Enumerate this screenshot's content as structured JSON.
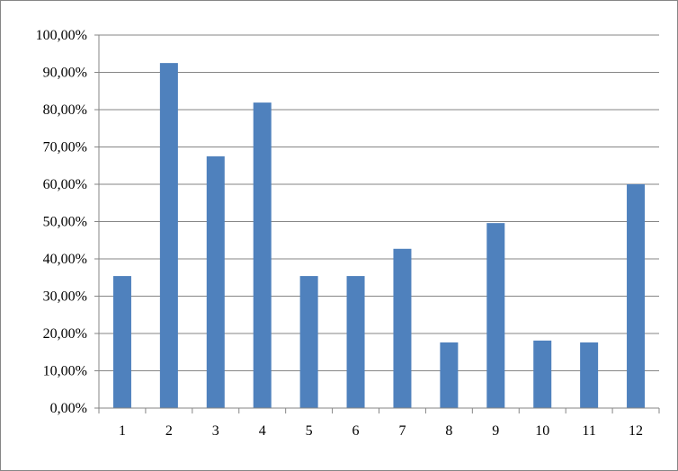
{
  "chart_data": {
    "type": "bar",
    "title": "",
    "xlabel": "",
    "ylabel": "",
    "categories": [
      "1",
      "2",
      "3",
      "4",
      "5",
      "6",
      "7",
      "8",
      "9",
      "10",
      "11",
      "12"
    ],
    "values": [
      35.4,
      92.5,
      67.5,
      81.9,
      35.4,
      35.4,
      42.7,
      17.6,
      49.6,
      18.1,
      17.6,
      60.0
    ],
    "ylim": [
      0,
      100
    ],
    "yticks": [
      "0,00%",
      "10,00%",
      "20,00%",
      "30,00%",
      "40,00%",
      "50,00%",
      "60,00%",
      "70,00%",
      "80,00%",
      "90,00%",
      "100,00%"
    ],
    "grid": true,
    "legend": "none",
    "bar_color": "#4F81BD",
    "grid_color": "#868686"
  }
}
